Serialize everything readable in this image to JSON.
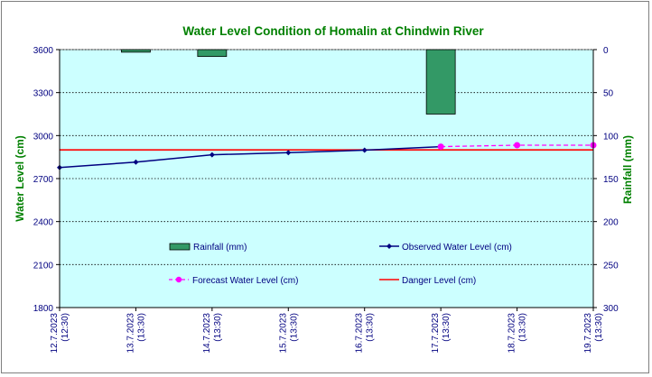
{
  "chart_data": {
    "type": "line",
    "title": "Water Level Condition  of Homalin  at Chindwin  River",
    "ylabel": "Water Level (cm)",
    "y2label": "Rainfall (mm)",
    "ylim": [
      1800,
      3600
    ],
    "y2lim": [
      0,
      300
    ],
    "y2_inverted": true,
    "yticks": [
      "3600",
      "3300",
      "3000",
      "2700",
      "2400",
      "2100",
      "1800"
    ],
    "y2ticks": [
      "0",
      "50",
      "100",
      "150",
      "200",
      "250",
      "300"
    ],
    "categories": [
      {
        "date": "12.7.2023",
        "time": "(12:30)"
      },
      {
        "date": "13.7.2023",
        "time": "(13:30)"
      },
      {
        "date": "14.7.2023",
        "time": "(13:30)"
      },
      {
        "date": "15.7.2023",
        "time": "(13:30)"
      },
      {
        "date": "16.7.2023",
        "time": "(13:30)"
      },
      {
        "date": "17.7.2023",
        "time": "(13:30)"
      },
      {
        "date": "18.7.2023",
        "time": "(13:30)"
      },
      {
        "date": "19.7.2023",
        "time": "(13:30)"
      }
    ],
    "series": {
      "rainfall": {
        "name": "Rainfall (mm)",
        "type": "bar",
        "axis": "right",
        "color": "#339966",
        "values": [
          0,
          3,
          8,
          0,
          0,
          75,
          0,
          0
        ]
      },
      "observed": {
        "name": "Observed Water Level (cm)",
        "type": "line",
        "color": "#000080",
        "values": [
          2777,
          2815,
          2866,
          2881,
          2898,
          2923,
          null,
          null
        ]
      },
      "forecast": {
        "name": "Forecast Water Level (cm)",
        "type": "line-dashed",
        "color": "#ff00ff",
        "values": [
          null,
          null,
          null,
          null,
          null,
          2923,
          2933,
          2933
        ]
      },
      "danger": {
        "name": "Danger Level (cm)",
        "type": "hline",
        "color": "#ff0000",
        "value": 2900
      }
    },
    "plot_background": "#ccffff",
    "title_color": "#008000",
    "axis_title_color": "#008000",
    "tick_label_color": "#000080",
    "grid": true,
    "legend": "inside-bottom"
  }
}
